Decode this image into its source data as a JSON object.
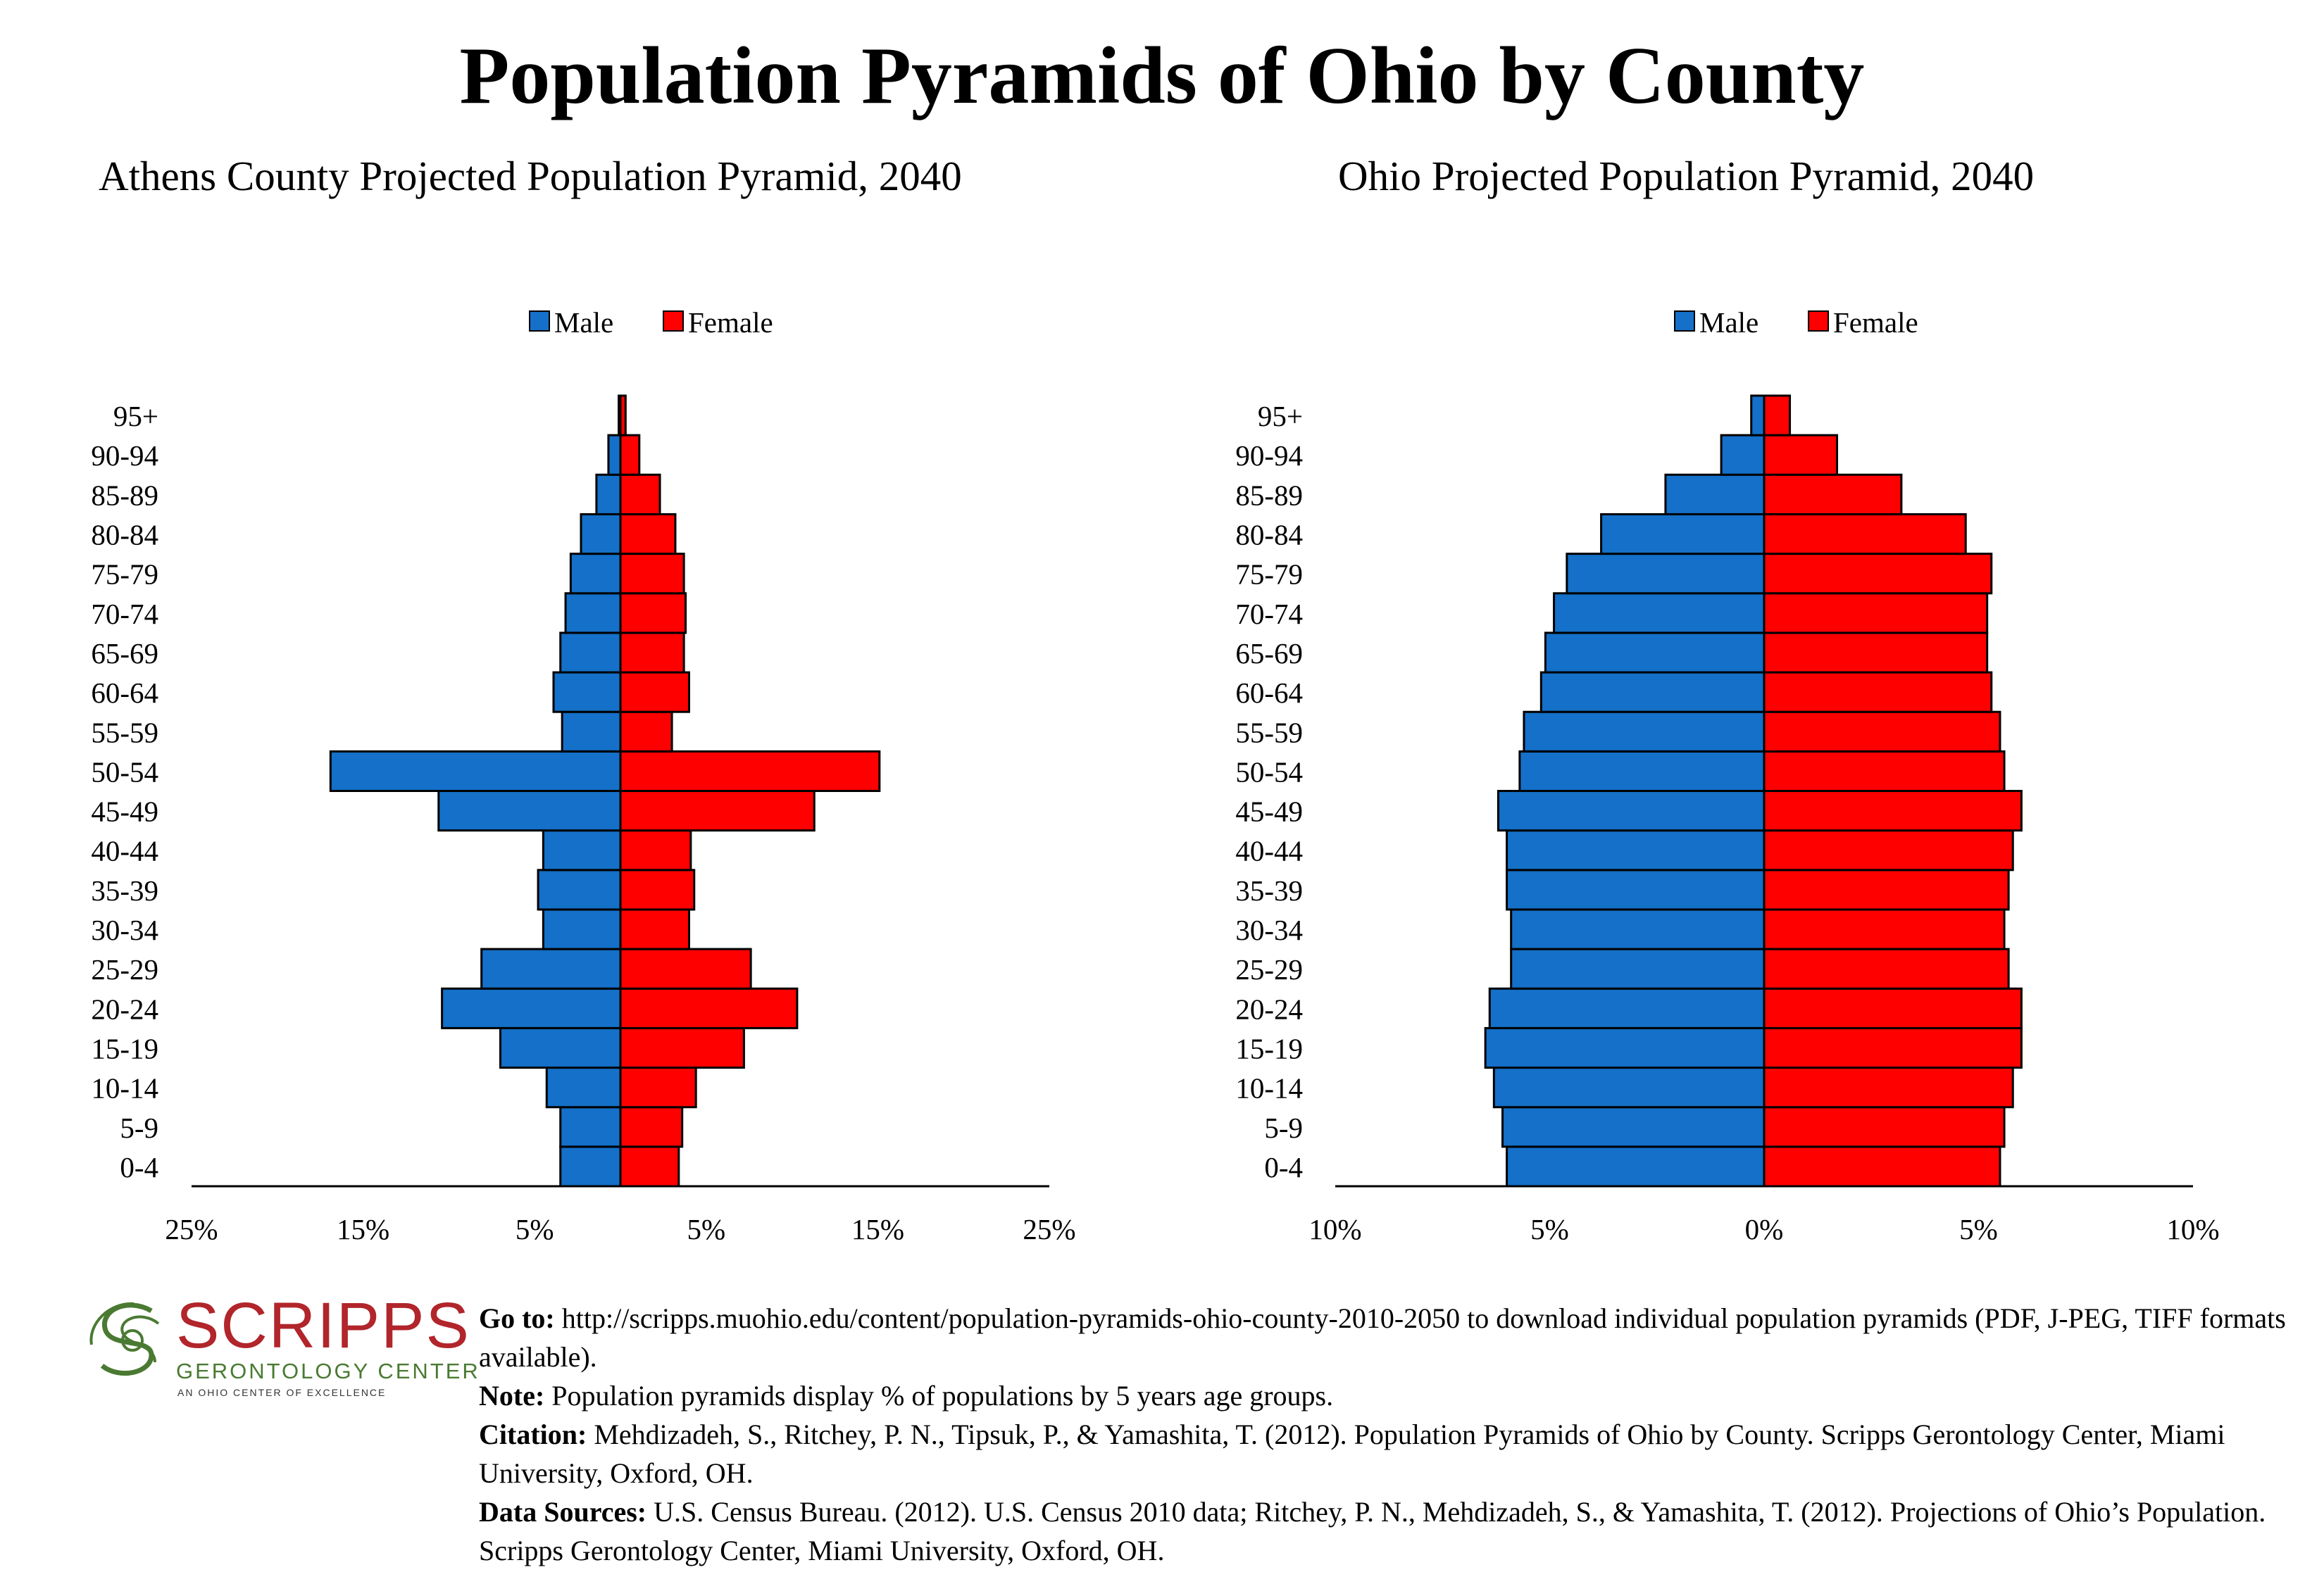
{
  "page": {
    "title": "Population Pyramids of Ohio by County"
  },
  "logo": {
    "name": "SCRIPPS",
    "subtitle": "GERONTOLOGY CENTER",
    "tagline": "AN OHIO CENTER OF EXCELLENCE",
    "colors": {
      "red": "#b1252b",
      "green": "#4a7a32"
    }
  },
  "colors": {
    "male": "#1470c8",
    "female": "#ff0000",
    "outline": "#000000"
  },
  "chart_data": [
    {
      "type": "bar",
      "orientation": "horizontal-pyramid",
      "title": "Athens County Projected Population Pyramid, 2040",
      "legend": {
        "placement": "top-center",
        "entries": [
          "Male",
          "Female"
        ]
      },
      "categories": [
        "0-4",
        "5-9",
        "10-14",
        "15-19",
        "20-24",
        "25-29",
        "30-34",
        "35-39",
        "40-44",
        "45-49",
        "50-54",
        "55-59",
        "60-64",
        "65-69",
        "70-74",
        "75-79",
        "80-84",
        "85-89",
        "90-94",
        "95+"
      ],
      "series": [
        {
          "name": "Male",
          "values": [
            3.5,
            3.5,
            4.3,
            7.0,
            10.4,
            8.1,
            4.5,
            4.8,
            4.5,
            10.6,
            16.9,
            3.4,
            3.9,
            3.5,
            3.2,
            2.9,
            2.3,
            1.4,
            0.7,
            0.1
          ]
        },
        {
          "name": "Female",
          "values": [
            3.4,
            3.6,
            4.4,
            7.2,
            10.3,
            7.6,
            4.0,
            4.3,
            4.1,
            11.3,
            15.1,
            3.0,
            4.0,
            3.7,
            3.8,
            3.7,
            3.2,
            2.3,
            1.1,
            0.3
          ]
        }
      ],
      "xlim": [
        -25,
        25
      ],
      "tick_values": [
        -25,
        -15,
        -5,
        5,
        15,
        25
      ],
      "tick_labels": [
        "25%",
        "15%",
        "5%",
        "5%",
        "15%",
        "25%"
      ],
      "grid": false
    },
    {
      "type": "bar",
      "orientation": "horizontal-pyramid",
      "title": "Ohio Projected Population Pyramid, 2040",
      "legend": {
        "placement": "top-center",
        "entries": [
          "Male",
          "Female"
        ]
      },
      "categories": [
        "0-4",
        "5-9",
        "10-14",
        "15-19",
        "20-24",
        "25-29",
        "30-34",
        "35-39",
        "40-44",
        "45-49",
        "50-54",
        "55-59",
        "60-64",
        "65-69",
        "70-74",
        "75-79",
        "80-84",
        "85-89",
        "90-94",
        "95+"
      ],
      "series": [
        {
          "name": "Male",
          "values": [
            6.0,
            6.1,
            6.3,
            6.5,
            6.4,
            5.9,
            5.9,
            6.0,
            6.0,
            6.2,
            5.7,
            5.6,
            5.2,
            5.1,
            4.9,
            4.6,
            3.8,
            2.3,
            1.0,
            0.3
          ]
        },
        {
          "name": "Female",
          "values": [
            5.5,
            5.6,
            5.8,
            6.0,
            6.0,
            5.7,
            5.6,
            5.7,
            5.8,
            6.0,
            5.6,
            5.5,
            5.3,
            5.2,
            5.2,
            5.3,
            4.7,
            3.2,
            1.7,
            0.6
          ]
        }
      ],
      "xlim": [
        -10,
        10
      ],
      "tick_values": [
        -10,
        -5,
        0,
        5,
        10
      ],
      "tick_labels": [
        "10%",
        "5%",
        "0%",
        "5%",
        "10%"
      ],
      "grid": false
    }
  ],
  "footer": {
    "goto_label": "Go to:",
    "goto_text": "http://scripps.muohio.edu/content/population-pyramids-ohio-county-2010-2050 to download individual population pyramids (PDF, J-PEG, TIFF formats available).",
    "note_label": "Note:",
    "note_text": "Population pyramids display % of populations by 5 years age groups.",
    "citation_label": "Citation:",
    "citation_text": "Mehdizadeh, S., Ritchey, P. N., Tipsuk, P., & Yamashita, T. (2012). Population Pyramids of Ohio by County. Scripps Gerontology Center, Miami University, Oxford, OH.",
    "sources_label": "Data Sources:",
    "sources_text": "U.S. Census Bureau. (2012). U.S. Census 2010 data; Ritchey, P. N., Mehdizadeh, S., & Yamashita, T. (2012). Projections of Ohio’s Population. Scripps Gerontology Center, Miami University, Oxford, OH."
  }
}
